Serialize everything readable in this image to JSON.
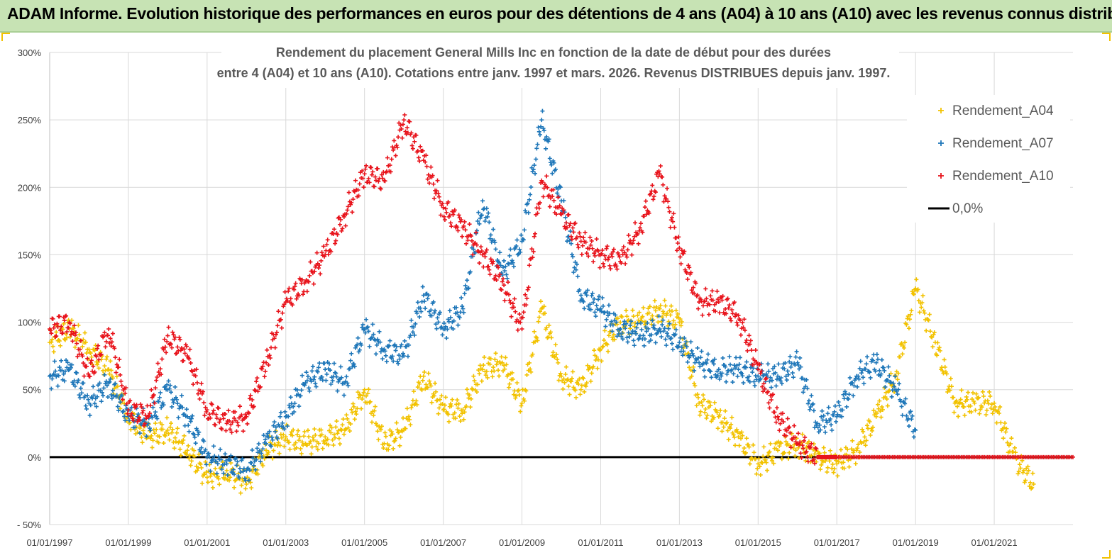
{
  "banner": {
    "title": "ADAM Informe. Evolution historique des performances en euros pour des détentions de 4 ans (A04) à 10 ans (A10) avec les revenus connus distribués"
  },
  "colors": {
    "A04": "#f2c200",
    "A07": "#1f77b9",
    "A10": "#e8141c",
    "zero": "#000000",
    "grid": "#d9d9d9",
    "banner_bg": "#c7e3b4"
  },
  "chart_data": {
    "type": "scatter",
    "title_line1": "Rendement du placement General Mills Inc en fonction de la date de début pour des durées",
    "title_line2": "entre 4 (A04) et 10 ans (A10). Cotations entre janv. 1997 et mars. 2026. Revenus DISTRIBUES depuis janv. 1997.",
    "xlabel": "",
    "ylabel": "",
    "xlim": [
      1997.0,
      2023.0
    ],
    "ylim": [
      -50,
      300
    ],
    "yticks": [
      -50,
      0,
      50,
      100,
      150,
      200,
      250,
      300
    ],
    "ytick_labels": [
      "- 50%",
      "0%",
      "50%",
      "100%",
      "150%",
      "200%",
      "250%",
      "300%"
    ],
    "xticks": [
      1997,
      1999,
      2001,
      2003,
      2005,
      2007,
      2009,
      2011,
      2013,
      2015,
      2017,
      2019,
      2021
    ],
    "xtick_labels": [
      "01/01/1997",
      "01/01/1999",
      "01/01/2001",
      "01/01/2003",
      "01/01/2005",
      "01/01/2007",
      "01/01/2009",
      "01/01/2011",
      "01/01/2013",
      "01/01/2015",
      "01/01/2017",
      "01/01/2019",
      "01/01/2021"
    ],
    "grid": true,
    "legend_position": "top-right",
    "legend": [
      "Rendement_A04",
      "Rendement_A07",
      "Rendement_A10",
      "0,0%"
    ],
    "series": [
      {
        "name": "Rendement_A04",
        "x": [
          1997.0,
          1997.5,
          1998.0,
          1998.5,
          1999.0,
          1999.5,
          2000.0,
          2000.5,
          2001.0,
          2001.5,
          2002.0,
          2002.5,
          2003.0,
          2003.5,
          2004.0,
          2004.5,
          2005.0,
          2005.5,
          2006.0,
          2006.5,
          2007.0,
          2007.5,
          2008.0,
          2008.5,
          2009.0,
          2009.5,
          2010.0,
          2010.5,
          2011.0,
          2011.5,
          2012.0,
          2012.5,
          2013.0,
          2013.5,
          2014.0,
          2014.5,
          2015.0,
          2015.5,
          2016.0,
          2016.5,
          2017.0,
          2017.5,
          2018.0,
          2018.5,
          2019.0,
          2019.5,
          2020.0,
          2020.5,
          2021.0,
          2021.5,
          2022.0
        ],
        "values": [
          85,
          95,
          80,
          65,
          30,
          15,
          20,
          5,
          -15,
          -10,
          -20,
          5,
          15,
          10,
          15,
          20,
          50,
          10,
          20,
          60,
          35,
          35,
          65,
          70,
          40,
          110,
          60,
          50,
          80,
          100,
          100,
          110,
          100,
          40,
          30,
          15,
          -5,
          5,
          10,
          0,
          -5,
          5,
          30,
          60,
          125,
          85,
          40,
          40,
          40,
          0,
          -20
        ]
      },
      {
        "name": "Rendement_A07",
        "x": [
          1997.0,
          1997.5,
          1998.0,
          1998.5,
          1999.0,
          1999.5,
          2000.0,
          2000.5,
          2001.0,
          2001.5,
          2002.0,
          2002.5,
          2003.0,
          2003.5,
          2004.0,
          2004.5,
          2005.0,
          2005.5,
          2006.0,
          2006.5,
          2007.0,
          2007.5,
          2008.0,
          2008.5,
          2009.0,
          2009.5,
          2010.0,
          2010.5,
          2011.0,
          2011.5,
          2012.0,
          2012.5,
          2013.0,
          2013.5,
          2014.0,
          2014.5,
          2015.0,
          2015.5,
          2016.0,
          2016.5,
          2017.0,
          2017.5,
          2018.0,
          2018.5,
          2019.0
        ],
        "values": [
          60,
          65,
          40,
          55,
          30,
          25,
          50,
          30,
          0,
          -5,
          -10,
          10,
          30,
          55,
          65,
          55,
          95,
          80,
          75,
          120,
          95,
          110,
          190,
          135,
          160,
          250,
          190,
          120,
          110,
          95,
          90,
          95,
          85,
          70,
          65,
          65,
          60,
          60,
          70,
          25,
          30,
          60,
          70,
          50,
          20
        ]
      },
      {
        "name": "Rendement_A10",
        "x": [
          1997.0,
          1997.5,
          1998.0,
          1998.5,
          1999.0,
          1999.5,
          2000.0,
          2000.5,
          2001.0,
          2001.5,
          2002.0,
          2002.5,
          2003.0,
          2003.5,
          2004.0,
          2004.5,
          2005.0,
          2005.5,
          2006.0,
          2006.5,
          2007.0,
          2007.5,
          2008.0,
          2008.5,
          2009.0,
          2009.5,
          2010.0,
          2010.5,
          2011.0,
          2011.5,
          2012.0,
          2012.5,
          2013.0,
          2013.5,
          2014.0,
          2014.5,
          2015.0,
          2015.5,
          2016.0,
          2016.5,
          2017.0,
          2018.0,
          2019.0,
          2020.0,
          2021.0,
          2022.0,
          2023.0
        ],
        "values": [
          95,
          100,
          60,
          95,
          35,
          30,
          90,
          75,
          35,
          25,
          30,
          70,
          115,
          130,
          150,
          180,
          210,
          205,
          250,
          220,
          185,
          170,
          150,
          130,
          95,
          205,
          180,
          160,
          150,
          145,
          170,
          210,
          155,
          115,
          115,
          105,
          65,
          30,
          10,
          0,
          0,
          0,
          0,
          0,
          0,
          0,
          0
        ]
      }
    ],
    "zero_line": {
      "name": "0,0%",
      "y": 0
    }
  }
}
